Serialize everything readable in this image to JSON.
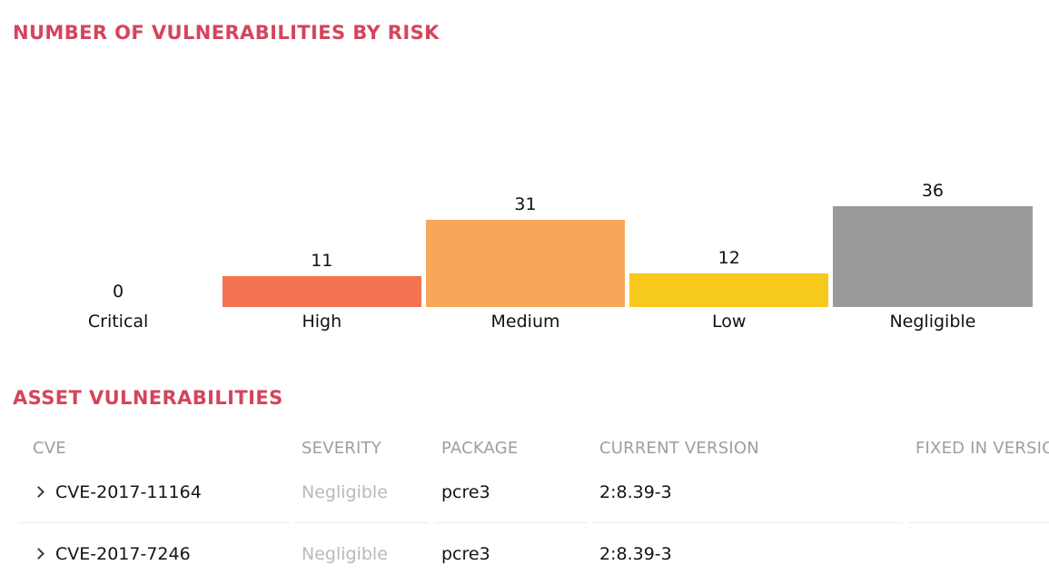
{
  "colors": {
    "section_title": "#d4455c",
    "bar_high": "#f47452",
    "bar_medium": "#faa65a",
    "bar_low": "#f7c91c",
    "bar_negligible": "#9a9a9a",
    "header_text": "#9e9e9e",
    "severity_text": "#b9b9b9",
    "body_text": "#141414"
  },
  "chart_section": {
    "title": "NUMBER OF VULNERABILITIES BY RISK"
  },
  "chart_data": {
    "type": "bar",
    "title": "NUMBER OF VULNERABILITIES BY RISK",
    "categories": [
      "Critical",
      "High",
      "Medium",
      "Low",
      "Negligible"
    ],
    "values": [
      0,
      11,
      31,
      12,
      36
    ],
    "bar_colors": [
      "transparent",
      "#f47452",
      "#faa65a",
      "#f7c91c",
      "#9a9a9a"
    ],
    "value_labels_shown": true,
    "axes_shown": false,
    "grid": false,
    "legend": false,
    "ylim": [
      0,
      36
    ]
  },
  "table_section": {
    "title": "ASSET VULNERABILITIES",
    "columns": [
      "CVE",
      "SEVERITY",
      "PACKAGE",
      "CURRENT VERSION",
      "FIXED IN VERSION"
    ],
    "expand_icon": "chevron-right",
    "rows": [
      {
        "cve": "CVE-2017-11164",
        "severity": "Negligible",
        "package": "pcre3",
        "current_version": "2:8.39-3",
        "fixed_in_version": ""
      },
      {
        "cve": "CVE-2017-7246",
        "severity": "Negligible",
        "package": "pcre3",
        "current_version": "2:8.39-3",
        "fixed_in_version": ""
      }
    ]
  }
}
